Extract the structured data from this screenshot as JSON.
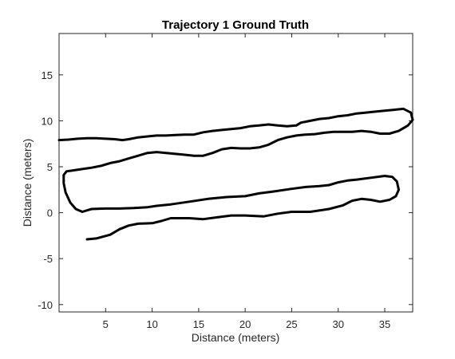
{
  "chart_data": {
    "type": "line",
    "title": "Trajectory 1 Ground Truth",
    "xlabel": "Distance (meters)",
    "ylabel": "Distance (meters)",
    "xlim": [
      0,
      38
    ],
    "ylim": [
      -10.8,
      19.5
    ],
    "xticks": [
      5,
      10,
      15,
      20,
      25,
      30,
      35
    ],
    "yticks": [
      -10,
      -5,
      0,
      5,
      10,
      15
    ],
    "grid": false,
    "box": true,
    "series": [
      {
        "color": "#000000",
        "points": [
          [
            3.0,
            -2.9
          ],
          [
            4.0,
            -2.8
          ],
          [
            5.5,
            -2.4
          ],
          [
            6.5,
            -1.8
          ],
          [
            7.5,
            -1.4
          ],
          [
            8.5,
            -1.2
          ],
          [
            10.0,
            -1.15
          ],
          [
            11.0,
            -0.9
          ],
          [
            12.0,
            -0.6
          ],
          [
            14.0,
            -0.6
          ],
          [
            15.5,
            -0.7
          ],
          [
            17.0,
            -0.5
          ],
          [
            18.5,
            -0.3
          ],
          [
            20.0,
            -0.3
          ],
          [
            22.0,
            -0.4
          ],
          [
            23.5,
            -0.1
          ],
          [
            25.0,
            0.1
          ],
          [
            27.0,
            0.1
          ],
          [
            29.0,
            0.4
          ],
          [
            30.5,
            0.8
          ],
          [
            31.5,
            1.3
          ],
          [
            32.5,
            1.5
          ],
          [
            33.5,
            1.4
          ],
          [
            34.5,
            1.2
          ],
          [
            35.5,
            1.4
          ],
          [
            36.2,
            1.8
          ],
          [
            36.5,
            2.5
          ],
          [
            36.3,
            3.4
          ],
          [
            35.8,
            3.9
          ],
          [
            35.0,
            4.0
          ],
          [
            33.5,
            3.8
          ],
          [
            32.0,
            3.6
          ],
          [
            31.0,
            3.5
          ],
          [
            30.0,
            3.3
          ],
          [
            29.0,
            3.0
          ],
          [
            28.0,
            2.9
          ],
          [
            26.5,
            2.8
          ],
          [
            25.0,
            2.6
          ],
          [
            23.0,
            2.3
          ],
          [
            21.5,
            2.1
          ],
          [
            20.0,
            1.8
          ],
          [
            18.0,
            1.7
          ],
          [
            16.0,
            1.5
          ],
          [
            14.0,
            1.2
          ],
          [
            12.0,
            0.9
          ],
          [
            10.5,
            0.75
          ],
          [
            9.5,
            0.6
          ],
          [
            8.0,
            0.5
          ],
          [
            6.5,
            0.45
          ],
          [
            5.0,
            0.45
          ],
          [
            3.5,
            0.4
          ],
          [
            3.0,
            0.25
          ],
          [
            2.5,
            0.1
          ],
          [
            1.8,
            0.4
          ],
          [
            1.2,
            1.1
          ],
          [
            0.7,
            2.2
          ],
          [
            0.5,
            3.2
          ],
          [
            0.5,
            4.1
          ],
          [
            0.8,
            4.5
          ],
          [
            1.5,
            4.6
          ],
          [
            2.5,
            4.75
          ],
          [
            3.5,
            4.9
          ],
          [
            4.5,
            5.1
          ],
          [
            5.5,
            5.4
          ],
          [
            6.5,
            5.6
          ],
          [
            7.5,
            5.9
          ],
          [
            8.5,
            6.2
          ],
          [
            9.5,
            6.5
          ],
          [
            10.5,
            6.6
          ],
          [
            11.5,
            6.5
          ],
          [
            12.5,
            6.4
          ],
          [
            13.5,
            6.3
          ],
          [
            14.5,
            6.2
          ],
          [
            15.5,
            6.2
          ],
          [
            16.5,
            6.5
          ],
          [
            17.5,
            6.9
          ],
          [
            18.5,
            7.05
          ],
          [
            19.5,
            7.0
          ],
          [
            20.5,
            7.0
          ],
          [
            21.5,
            7.1
          ],
          [
            22.5,
            7.4
          ],
          [
            23.5,
            7.9
          ],
          [
            24.5,
            8.2
          ],
          [
            25.5,
            8.4
          ],
          [
            26.5,
            8.5
          ],
          [
            27.5,
            8.55
          ],
          [
            28.5,
            8.7
          ],
          [
            29.5,
            8.8
          ],
          [
            30.5,
            8.8
          ],
          [
            31.5,
            8.8
          ],
          [
            32.5,
            8.9
          ],
          [
            33.5,
            8.8
          ],
          [
            34.5,
            8.6
          ],
          [
            35.5,
            8.6
          ],
          [
            36.5,
            8.9
          ],
          [
            37.5,
            9.5
          ],
          [
            38.0,
            10.1
          ],
          [
            37.8,
            10.9
          ],
          [
            37.0,
            11.3
          ],
          [
            36.0,
            11.2
          ],
          [
            35.0,
            11.1
          ],
          [
            34.0,
            11.0
          ],
          [
            33.0,
            10.9
          ],
          [
            32.0,
            10.8
          ],
          [
            31.0,
            10.6
          ],
          [
            30.0,
            10.5
          ],
          [
            29.0,
            10.3
          ],
          [
            28.0,
            10.2
          ],
          [
            27.0,
            10.0
          ],
          [
            26.0,
            9.8
          ],
          [
            25.5,
            9.5
          ],
          [
            24.5,
            9.4
          ],
          [
            23.5,
            9.5
          ],
          [
            22.5,
            9.6
          ],
          [
            21.5,
            9.5
          ],
          [
            20.5,
            9.4
          ],
          [
            19.5,
            9.2
          ],
          [
            18.5,
            9.1
          ],
          [
            17.5,
            9.0
          ],
          [
            16.5,
            8.9
          ],
          [
            15.5,
            8.75
          ],
          [
            14.5,
            8.5
          ],
          [
            13.5,
            8.5
          ],
          [
            12.5,
            8.45
          ],
          [
            11.5,
            8.4
          ],
          [
            10.5,
            8.4
          ],
          [
            9.5,
            8.3
          ],
          [
            8.5,
            8.2
          ],
          [
            7.5,
            8.0
          ],
          [
            6.8,
            7.9
          ],
          [
            6.0,
            8.0
          ],
          [
            5.0,
            8.05
          ],
          [
            4.0,
            8.1
          ],
          [
            3.0,
            8.1
          ],
          [
            2.0,
            8.05
          ],
          [
            1.0,
            7.95
          ],
          [
            0.0,
            7.9
          ]
        ]
      }
    ]
  }
}
